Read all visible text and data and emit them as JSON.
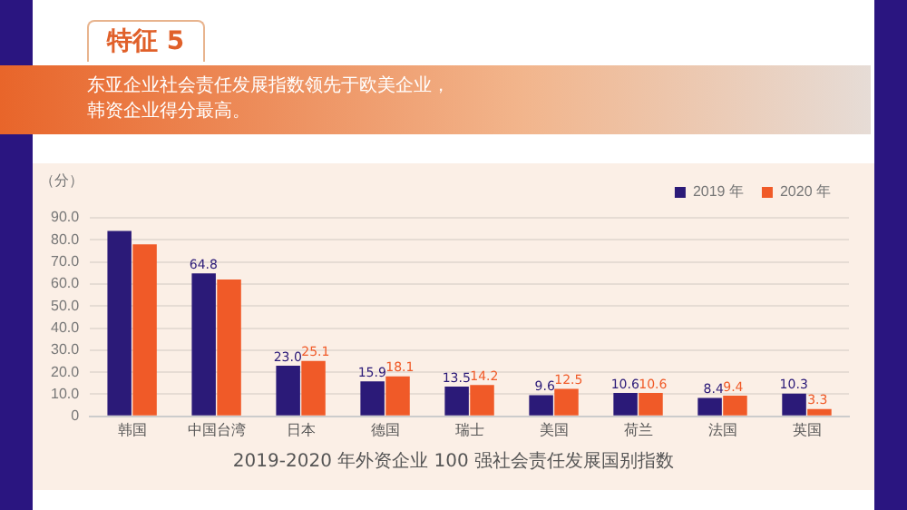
{
  "chart_data": {
    "type": "bar",
    "title": "特征 5",
    "subtitle": "东亚企业社会责任发展指数领先于欧美企业，韩资企业得分最高。",
    "ylabel": "（分）",
    "annotations": [
      "2019-2020 年外资企业 100 强社会责任发展国别指数"
    ],
    "categories": [
      "韩国",
      "中国台湾",
      "日本",
      "德国",
      "瑞士",
      "美国",
      "荷兰",
      "法国",
      "英国"
    ],
    "series": [
      {
        "name": "2019 年",
        "color": "#2b1a78",
        "values": [
          84,
          64.8,
          23.0,
          15.9,
          13.5,
          9.6,
          10.6,
          8.4,
          10.3
        ],
        "value_labels": [
          null,
          "64.8",
          "23.0",
          "15.9",
          "13.5",
          "9.6",
          "10.6",
          "8.4",
          "10.3"
        ]
      },
      {
        "name": "2020 年",
        "color": "#f05a28",
        "values": [
          78,
          62,
          25.1,
          18.1,
          14.2,
          12.5,
          10.6,
          9.4,
          3.3
        ],
        "value_labels": [
          null,
          null,
          "25.1",
          "18.1",
          "14.2",
          "12.5",
          "10.6",
          "9.4",
          "3.3"
        ]
      }
    ],
    "ylim": [
      0,
      90
    ],
    "yticks": [
      {
        "value": 0,
        "label": "0"
      },
      {
        "value": 10,
        "label": "10.0"
      },
      {
        "value": 20,
        "label": "20.0"
      },
      {
        "value": 30,
        "label": "30.0"
      },
      {
        "value": 40,
        "label": "40.0"
      },
      {
        "value": 50,
        "label": "50.0"
      },
      {
        "value": 60,
        "label": "60.0"
      },
      {
        "value": 70,
        "label": "70.0"
      },
      {
        "value": 80,
        "label": "80.0"
      },
      {
        "value": 90,
        "label": "90.0"
      }
    ],
    "grid": "y",
    "legend": "top right"
  }
}
